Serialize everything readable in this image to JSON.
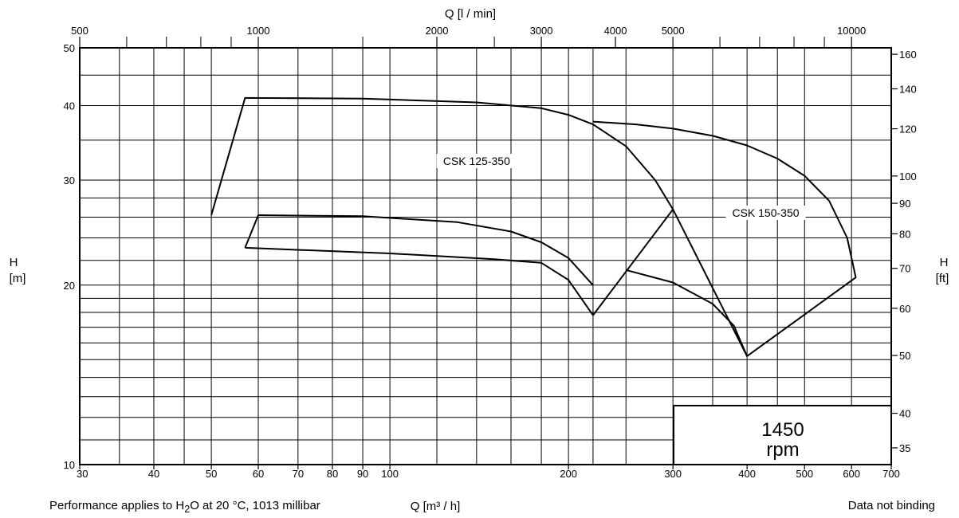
{
  "chart_data": {
    "type": "line",
    "title": "",
    "x_axis": {
      "label": "Q [m³ / h]",
      "scale": "log",
      "range": [
        30,
        700
      ],
      "ticks": [
        30,
        40,
        50,
        60,
        70,
        80,
        90,
        100,
        200,
        300,
        400,
        500,
        600,
        700
      ]
    },
    "x_top_axis": {
      "label": "Q [l / min]",
      "scale": "log",
      "range": [
        500,
        11667
      ],
      "labeled_ticks": [
        500,
        1000,
        2000,
        3000,
        4000,
        5000,
        10000
      ],
      "minor_ticks": [
        600,
        700,
        800,
        900,
        1500,
        2500,
        6000,
        7000,
        8000,
        9000
      ]
    },
    "y_axis": {
      "label_top": "H",
      "label_bottom": "[m]",
      "scale": "log",
      "range": [
        10,
        50
      ],
      "labeled_ticks": [
        10,
        20,
        30,
        40,
        50
      ],
      "gridlines": [
        10,
        11,
        12,
        13,
        14,
        15,
        16,
        17,
        18,
        19,
        20,
        22,
        24,
        26,
        28,
        30,
        35,
        40,
        45,
        50
      ]
    },
    "y_right_axis": {
      "label_top": "H",
      "label_bottom": "[ft]",
      "ticks": [
        35,
        40,
        50,
        60,
        70,
        80,
        90,
        100,
        120,
        140,
        160
      ]
    },
    "x_gridlines": [
      30,
      35,
      40,
      45,
      50,
      60,
      70,
      80,
      90,
      100,
      120,
      140,
      160,
      180,
      200,
      220,
      250,
      300,
      350,
      400,
      450,
      500,
      600,
      700
    ],
    "series": [
      {
        "name": "CSK 125-350",
        "label_at": [
          140,
          32
        ],
        "outer": [
          [
            50,
            26.2
          ],
          [
            57,
            41.2
          ],
          [
            90,
            41.1
          ],
          [
            140,
            40.5
          ],
          [
            180,
            39.6
          ],
          [
            200,
            38.6
          ],
          [
            220,
            37.2
          ],
          [
            250,
            34.2
          ],
          [
            280,
            30.0
          ],
          [
            300,
            26.8
          ],
          [
            220,
            17.8
          ]
        ],
        "top_curve": [
          [
            60,
            26.2
          ],
          [
            90,
            26.1
          ],
          [
            130,
            25.5
          ],
          [
            160,
            24.6
          ],
          [
            180,
            23.6
          ],
          [
            200,
            22.2
          ],
          [
            220,
            20.0
          ]
        ],
        "bottom_curve": [
          [
            57,
            23.1
          ],
          [
            100,
            22.6
          ],
          [
            150,
            22.1
          ],
          [
            180,
            21.8
          ],
          [
            200,
            20.4
          ],
          [
            220,
            17.8
          ]
        ],
        "left_edge": [
          [
            57,
            23.1
          ],
          [
            60,
            26.2
          ]
        ]
      },
      {
        "name": "CSK 150-350",
        "label_at": [
          430,
          26.2
        ],
        "outer": [
          [
            220,
            37.6
          ],
          [
            260,
            37.2
          ],
          [
            300,
            36.6
          ],
          [
            350,
            35.6
          ],
          [
            400,
            34.3
          ],
          [
            450,
            32.6
          ],
          [
            500,
            30.5
          ],
          [
            550,
            27.7
          ],
          [
            590,
            24.0
          ],
          [
            610,
            20.6
          ],
          [
            400,
            15.2
          ],
          [
            300,
            26.8
          ]
        ],
        "bottom_curve": [
          [
            250,
            21.2
          ],
          [
            300,
            20.2
          ],
          [
            350,
            18.6
          ],
          [
            380,
            17.1
          ],
          [
            400,
            15.2
          ]
        ]
      }
    ],
    "annotation_box": {
      "line1": "1450",
      "line2": "rpm"
    }
  },
  "footer": {
    "left_pre": "Performance applies to H",
    "left_sub": "2",
    "left_post": "O at 20 °C, 1013 millibar",
    "right": "Data not binding"
  }
}
